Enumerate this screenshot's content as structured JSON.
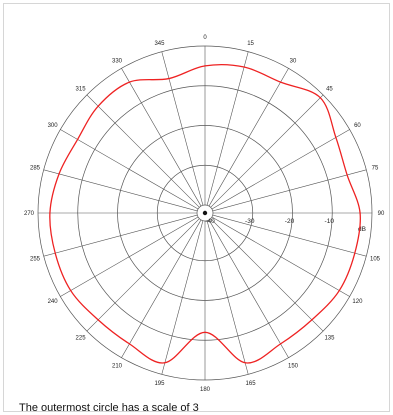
{
  "chart_data": {
    "type": "polar",
    "title": "",
    "radial_unit": "dB",
    "rings_db": [
      0,
      -10,
      -20,
      -30,
      -40
    ],
    "radial_tick_labels": [
      "-10",
      "-20",
      "-30",
      "-40"
    ],
    "angle_ticks": [
      0,
      15,
      30,
      45,
      60,
      75,
      90,
      105,
      120,
      135,
      150,
      165,
      180,
      195,
      210,
      225,
      240,
      255,
      270,
      285,
      300,
      315,
      330,
      345
    ],
    "angle_labels": [
      "0",
      "15",
      "30",
      "45",
      "60",
      "75",
      "90",
      "105",
      "120",
      "135",
      "150",
      "165",
      "180",
      "195",
      "210",
      "225",
      "240",
      "255",
      "270",
      "285",
      "300",
      "315",
      "330",
      "345"
    ],
    "angle_direction": "clockwise",
    "zero_position": "top",
    "grid": true,
    "series": [
      {
        "color": "#ee2222",
        "angles": [
          0,
          15,
          30,
          45,
          60,
          75,
          90,
          105,
          120,
          135,
          150,
          165,
          180,
          195,
          210,
          225,
          240,
          255,
          270,
          285,
          300,
          315,
          330,
          345
        ],
        "values_db": [
          -5,
          -4,
          -4,
          -1,
          -4,
          -5,
          -3,
          -3,
          -3,
          -4,
          -4,
          -3,
          -12,
          -3,
          -4,
          -4,
          -3,
          -3,
          -3,
          -4,
          -5,
          -4,
          -4,
          -7
        ]
      }
    ]
  },
  "caption": "The outermost circle has a scale of 3"
}
